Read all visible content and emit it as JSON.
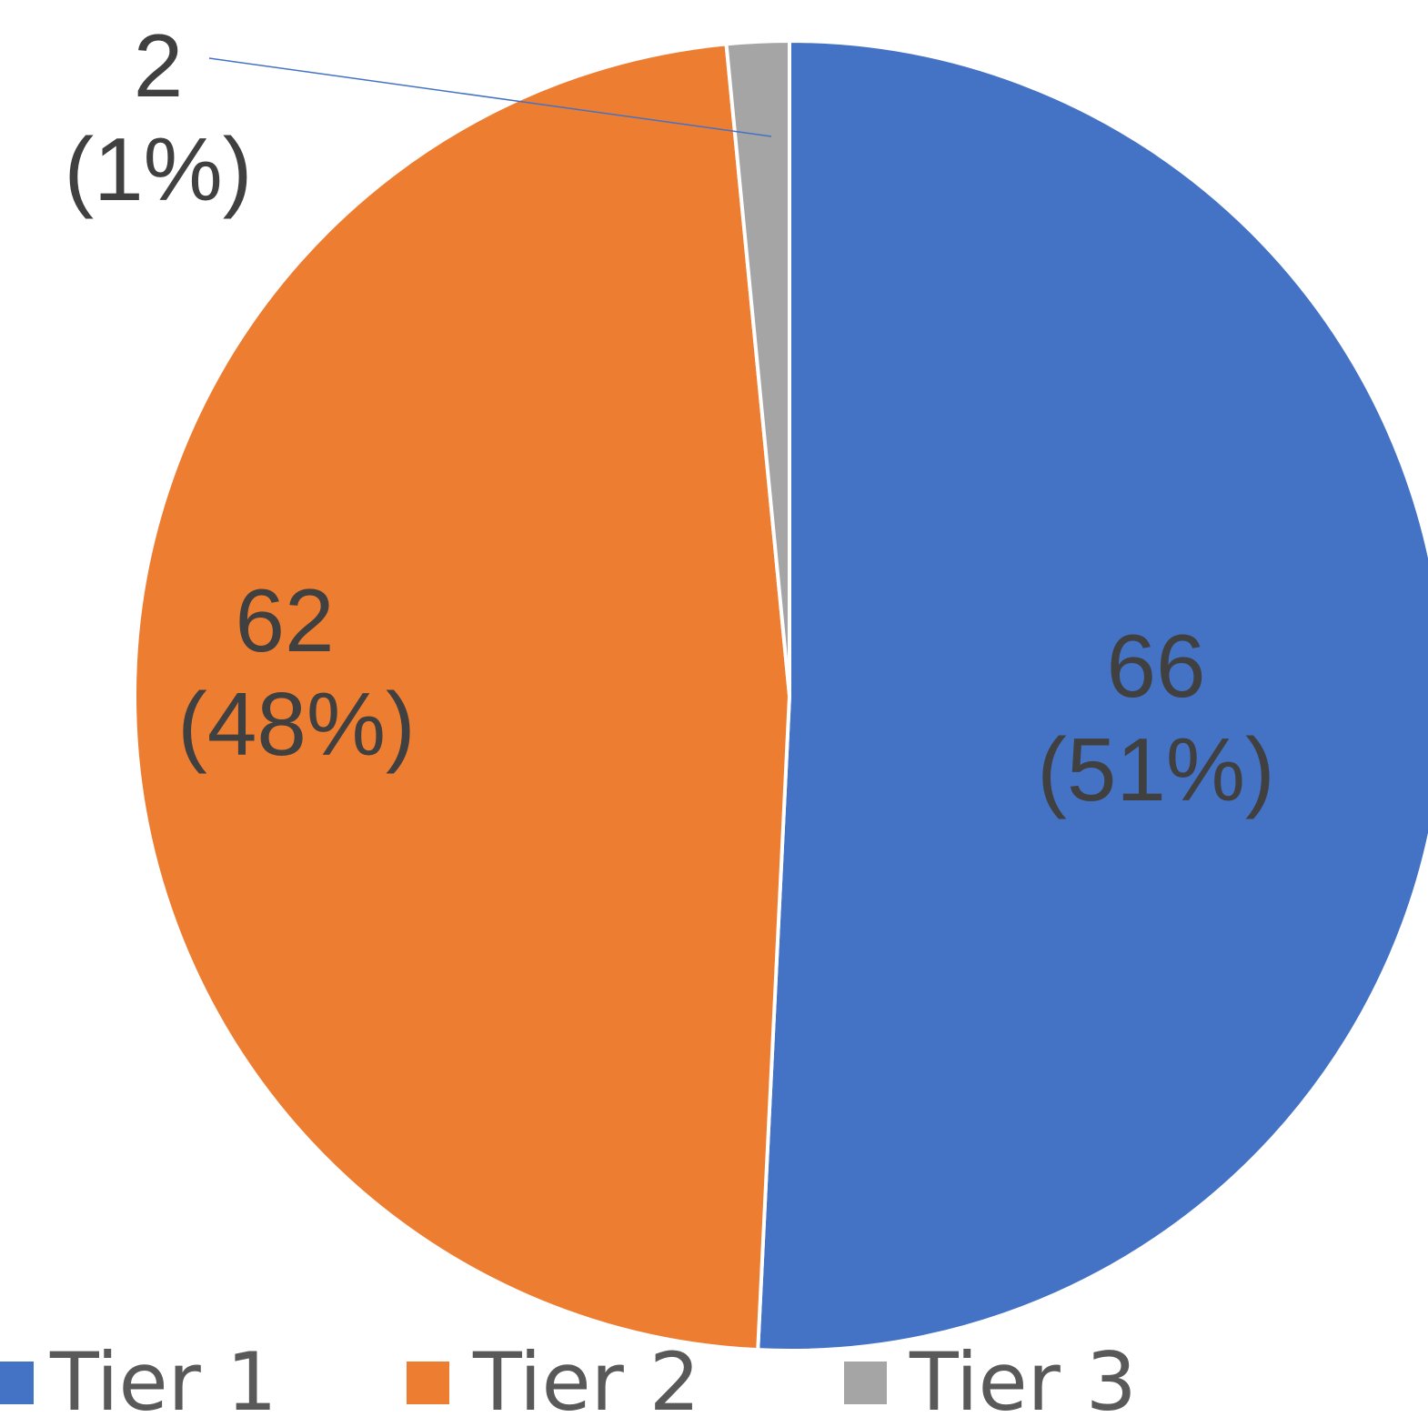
{
  "chart_data": {
    "type": "pie",
    "title": "",
    "categories": [
      "Tier 1",
      "Tier 2",
      "Tier 3"
    ],
    "values": [
      66,
      62,
      2
    ],
    "percent_labels": [
      "(51%)",
      "(48%)",
      "(1%)"
    ],
    "colors": [
      "#4472C4",
      "#ED7D31",
      "#A5A5A5"
    ],
    "start_angle_deg": 0,
    "direction": "clockwise",
    "slice_border_color": "#FFFFFF",
    "leader_line_color": "#4472C4",
    "legend": {
      "placement": "bottom",
      "entries": [
        "Tier 1",
        "Tier 2",
        "Tier 3"
      ]
    },
    "data_labels": [
      {
        "value": "66",
        "percent": "(51%)"
      },
      {
        "value": "62",
        "percent": "(48%)"
      },
      {
        "value": "2",
        "percent": "(1%)"
      }
    ]
  }
}
